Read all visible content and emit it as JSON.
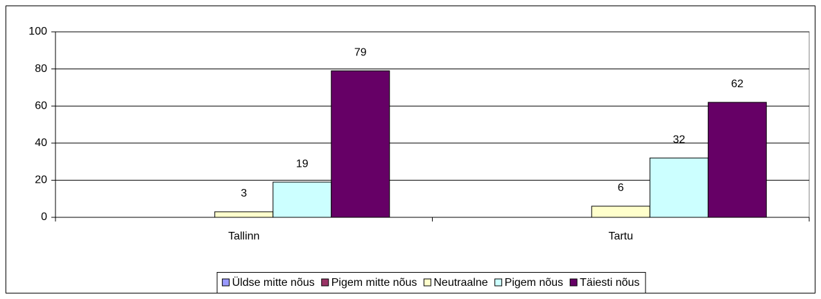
{
  "chart_data": {
    "type": "bar",
    "categories": [
      "Tallinn",
      "Tartu"
    ],
    "series": [
      {
        "name": "Üldse mitte nõus",
        "color": "#9999ff",
        "values": [
          null,
          null
        ]
      },
      {
        "name": "Pigem mitte nõus",
        "color": "#993366",
        "values": [
          null,
          null
        ]
      },
      {
        "name": "Neutraalne",
        "color": "#ffffcc",
        "values": [
          3,
          6
        ]
      },
      {
        "name": "Pigem nõus",
        "color": "#ccffff",
        "values": [
          19,
          32
        ]
      },
      {
        "name": "Täiesti nõus",
        "color": "#660066",
        "values": [
          79,
          62
        ]
      }
    ],
    "ylim": [
      0,
      100
    ],
    "yticks": [
      0,
      20,
      40,
      60,
      80,
      100
    ],
    "grid": true,
    "legend": "bottom"
  }
}
